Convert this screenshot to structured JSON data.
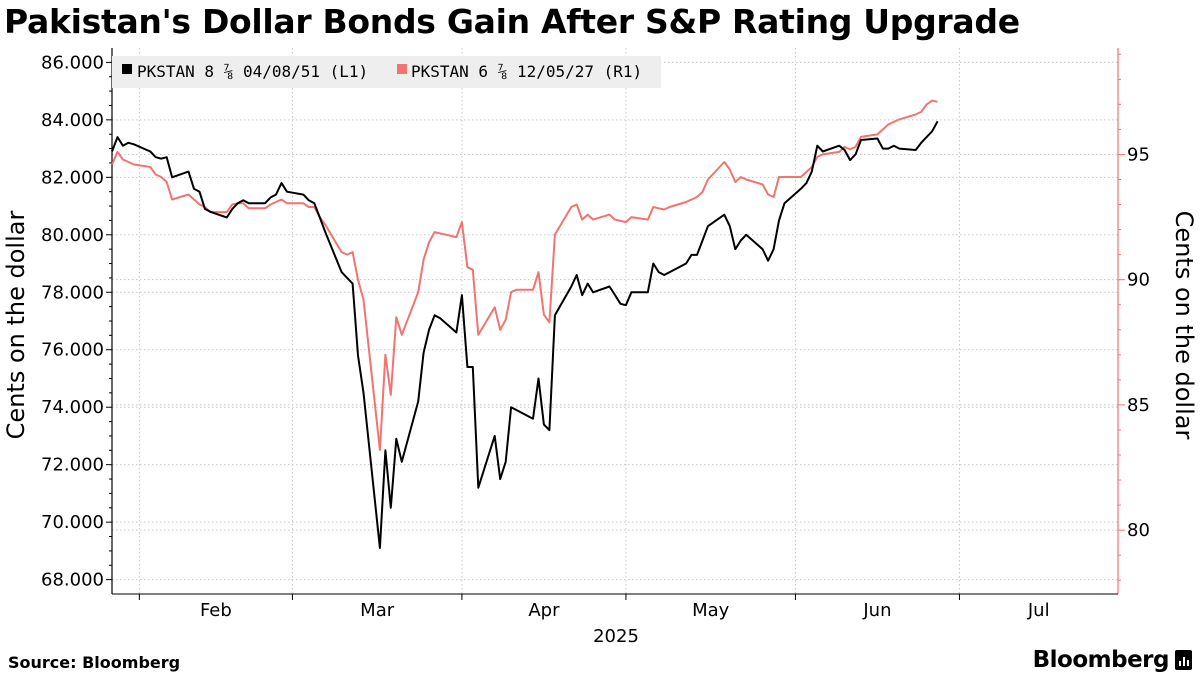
{
  "title": "Pakistan's Dollar Bonds Gain After S&P Rating Upgrade",
  "footer": {
    "source": "Source: Bloomberg",
    "brand": "Bloomberg"
  },
  "colors": {
    "series1": "#000000",
    "series2": "#f07470",
    "right_axis": "#f07470",
    "grid": "#c8c8c8",
    "legend_bg": "#eeeeee"
  },
  "chart_data": {
    "type": "line",
    "xlabel": "2025",
    "ylabel_left": "Cents on the dollar",
    "ylabel_right": "Cents on the dollar",
    "x_ticks": [
      "Feb",
      "Mar",
      "Apr",
      "May",
      "Jun",
      "Jul"
    ],
    "x_start": "2025-01-27",
    "x_end": "2025-07-30",
    "y_left": {
      "min": 67.5,
      "max": 86.5,
      "ticks": [
        "68.000",
        "70.000",
        "72.000",
        "74.000",
        "76.000",
        "78.000",
        "80.000",
        "82.000",
        "84.000",
        "86.000"
      ]
    },
    "y_right": {
      "min": 77.45,
      "max": 99.25,
      "ticks": [
        "80",
        "85",
        "90",
        "95"
      ]
    },
    "series": [
      {
        "name": "PKSTAN 8 ⅞ 04/08/51 (L1)",
        "axis": "left",
        "points": [
          [
            "2025-01-27",
            82.9
          ],
          [
            "2025-01-28",
            83.4
          ],
          [
            "2025-01-29",
            83.1
          ],
          [
            "2025-01-30",
            83.2
          ],
          [
            "2025-01-31",
            83.15
          ],
          [
            "2025-02-03",
            82.9
          ],
          [
            "2025-02-04",
            82.7
          ],
          [
            "2025-02-05",
            82.65
          ],
          [
            "2025-02-06",
            82.7
          ],
          [
            "2025-02-07",
            82.0
          ],
          [
            "2025-02-10",
            82.2
          ],
          [
            "2025-02-11",
            81.6
          ],
          [
            "2025-02-12",
            81.5
          ],
          [
            "2025-02-13",
            80.9
          ],
          [
            "2025-02-14",
            80.8
          ],
          [
            "2025-02-17",
            80.6
          ],
          [
            "2025-02-18",
            80.9
          ],
          [
            "2025-02-19",
            81.1
          ],
          [
            "2025-02-20",
            81.2
          ],
          [
            "2025-02-21",
            81.1
          ],
          [
            "2025-02-24",
            81.1
          ],
          [
            "2025-02-25",
            81.3
          ],
          [
            "2025-02-26",
            81.4
          ],
          [
            "2025-02-27",
            81.8
          ],
          [
            "2025-02-28",
            81.5
          ],
          [
            "2025-03-03",
            81.4
          ],
          [
            "2025-03-04",
            81.2
          ],
          [
            "2025-03-05",
            81.1
          ],
          [
            "2025-03-06",
            80.6
          ],
          [
            "2025-03-07",
            80.1
          ],
          [
            "2025-03-10",
            78.7
          ],
          [
            "2025-03-11",
            78.5
          ],
          [
            "2025-03-12",
            78.3
          ],
          [
            "2025-03-13",
            75.8
          ],
          [
            "2025-03-14",
            74.5
          ],
          [
            "2025-03-17",
            69.1
          ],
          [
            "2025-03-18",
            72.5
          ],
          [
            "2025-03-19",
            70.5
          ],
          [
            "2025-03-20",
            72.9
          ],
          [
            "2025-03-21",
            72.1
          ],
          [
            "2025-03-24",
            74.2
          ],
          [
            "2025-03-25",
            75.9
          ],
          [
            "2025-03-26",
            76.7
          ],
          [
            "2025-03-27",
            77.2
          ],
          [
            "2025-03-28",
            77.1
          ],
          [
            "2025-03-31",
            76.6
          ],
          [
            "2025-04-01",
            77.9
          ],
          [
            "2025-04-02",
            75.4
          ],
          [
            "2025-04-03",
            75.4
          ],
          [
            "2025-04-04",
            71.2
          ],
          [
            "2025-04-07",
            73.0
          ],
          [
            "2025-04-08",
            71.5
          ],
          [
            "2025-04-09",
            72.1
          ],
          [
            "2025-04-10",
            74.0
          ],
          [
            "2025-04-11",
            73.9
          ],
          [
            "2025-04-14",
            73.6
          ],
          [
            "2025-04-15",
            75.0
          ],
          [
            "2025-04-16",
            73.4
          ],
          [
            "2025-04-17",
            73.2
          ],
          [
            "2025-04-18",
            77.2
          ],
          [
            "2025-04-21",
            78.2
          ],
          [
            "2025-04-22",
            78.6
          ],
          [
            "2025-04-23",
            77.9
          ],
          [
            "2025-04-24",
            78.3
          ],
          [
            "2025-04-25",
            78.0
          ],
          [
            "2025-04-28",
            78.2
          ],
          [
            "2025-04-29",
            77.9
          ],
          [
            "2025-04-30",
            77.6
          ],
          [
            "2025-05-01",
            77.55
          ],
          [
            "2025-05-02",
            78.0
          ],
          [
            "2025-05-05",
            78.0
          ],
          [
            "2025-05-06",
            79.0
          ],
          [
            "2025-05-07",
            78.7
          ],
          [
            "2025-05-08",
            78.6
          ],
          [
            "2025-05-09",
            78.7
          ],
          [
            "2025-05-12",
            79.0
          ],
          [
            "2025-05-13",
            79.3
          ],
          [
            "2025-05-14",
            79.3
          ],
          [
            "2025-05-15",
            79.8
          ],
          [
            "2025-05-16",
            80.3
          ],
          [
            "2025-05-19",
            80.7
          ],
          [
            "2025-05-20",
            80.3
          ],
          [
            "2025-05-21",
            79.5
          ],
          [
            "2025-05-22",
            79.8
          ],
          [
            "2025-05-23",
            80.0
          ],
          [
            "2025-05-26",
            79.5
          ],
          [
            "2025-05-27",
            79.1
          ],
          [
            "2025-05-28",
            79.5
          ],
          [
            "2025-05-29",
            80.5
          ],
          [
            "2025-05-30",
            81.1
          ],
          [
            "2025-06-02",
            81.6
          ],
          [
            "2025-06-03",
            81.8
          ],
          [
            "2025-06-04",
            82.2
          ],
          [
            "2025-06-05",
            83.1
          ],
          [
            "2025-06-06",
            82.9
          ],
          [
            "2025-06-09",
            83.1
          ],
          [
            "2025-06-10",
            82.95
          ],
          [
            "2025-06-11",
            82.6
          ],
          [
            "2025-06-12",
            82.8
          ],
          [
            "2025-06-13",
            83.3
          ],
          [
            "2025-06-16",
            83.35
          ],
          [
            "2025-06-17",
            83.0
          ],
          [
            "2025-06-18",
            83.0
          ],
          [
            "2025-06-19",
            83.1
          ],
          [
            "2025-06-20",
            83.0
          ],
          [
            "2025-06-23",
            82.95
          ],
          [
            "2025-06-24",
            83.2
          ],
          [
            "2025-06-25",
            83.4
          ],
          [
            "2025-06-26",
            83.6
          ],
          [
            "2025-06-27",
            83.95
          ]
        ]
      },
      {
        "name": "PKSTAN 6 ⅞ 12/05/27 (R1)",
        "axis": "right",
        "points": [
          [
            "2025-01-27",
            94.6
          ],
          [
            "2025-01-28",
            95.1
          ],
          [
            "2025-01-29",
            94.8
          ],
          [
            "2025-01-30",
            94.7
          ],
          [
            "2025-01-31",
            94.6
          ],
          [
            "2025-02-03",
            94.5
          ],
          [
            "2025-02-04",
            94.2
          ],
          [
            "2025-02-05",
            94.1
          ],
          [
            "2025-02-06",
            93.9
          ],
          [
            "2025-02-07",
            93.2
          ],
          [
            "2025-02-10",
            93.4
          ],
          [
            "2025-02-11",
            93.2
          ],
          [
            "2025-02-12",
            93.0
          ],
          [
            "2025-02-13",
            92.9
          ],
          [
            "2025-02-14",
            92.7
          ],
          [
            "2025-02-17",
            92.7
          ],
          [
            "2025-02-18",
            93.0
          ],
          [
            "2025-02-19",
            93.05
          ],
          [
            "2025-02-20",
            93.05
          ],
          [
            "2025-02-21",
            92.85
          ],
          [
            "2025-02-24",
            92.85
          ],
          [
            "2025-02-25",
            93.0
          ],
          [
            "2025-02-26",
            93.1
          ],
          [
            "2025-02-27",
            93.2
          ],
          [
            "2025-02-28",
            93.05
          ],
          [
            "2025-03-03",
            93.05
          ],
          [
            "2025-03-04",
            92.9
          ],
          [
            "2025-03-05",
            92.9
          ],
          [
            "2025-03-06",
            92.5
          ],
          [
            "2025-03-07",
            92.2
          ],
          [
            "2025-03-10",
            91.1
          ],
          [
            "2025-03-11",
            91.0
          ],
          [
            "2025-03-12",
            91.1
          ],
          [
            "2025-03-13",
            90.0
          ],
          [
            "2025-03-14",
            89.2
          ],
          [
            "2025-03-17",
            83.2
          ],
          [
            "2025-03-18",
            87.0
          ],
          [
            "2025-03-19",
            85.4
          ],
          [
            "2025-03-20",
            88.5
          ],
          [
            "2025-03-21",
            87.8
          ],
          [
            "2025-03-24",
            89.5
          ],
          [
            "2025-03-25",
            90.8
          ],
          [
            "2025-03-26",
            91.5
          ],
          [
            "2025-03-27",
            91.9
          ],
          [
            "2025-03-28",
            91.85
          ],
          [
            "2025-03-31",
            91.7
          ],
          [
            "2025-04-01",
            92.3
          ],
          [
            "2025-04-02",
            90.5
          ],
          [
            "2025-04-03",
            90.4
          ],
          [
            "2025-04-04",
            87.8
          ],
          [
            "2025-04-07",
            88.9
          ],
          [
            "2025-04-08",
            88.0
          ],
          [
            "2025-04-09",
            88.4
          ],
          [
            "2025-04-10",
            89.5
          ],
          [
            "2025-04-11",
            89.6
          ],
          [
            "2025-04-14",
            89.6
          ],
          [
            "2025-04-15",
            90.3
          ],
          [
            "2025-04-16",
            88.6
          ],
          [
            "2025-04-17",
            88.3
          ],
          [
            "2025-04-18",
            91.8
          ],
          [
            "2025-04-21",
            92.9
          ],
          [
            "2025-04-22",
            93.0
          ],
          [
            "2025-04-23",
            92.4
          ],
          [
            "2025-04-24",
            92.6
          ],
          [
            "2025-04-25",
            92.4
          ],
          [
            "2025-04-28",
            92.6
          ],
          [
            "2025-04-29",
            92.4
          ],
          [
            "2025-04-30",
            92.35
          ],
          [
            "2025-05-01",
            92.3
          ],
          [
            "2025-05-02",
            92.5
          ],
          [
            "2025-05-05",
            92.4
          ],
          [
            "2025-05-06",
            92.9
          ],
          [
            "2025-05-07",
            92.85
          ],
          [
            "2025-05-08",
            92.8
          ],
          [
            "2025-05-09",
            92.9
          ],
          [
            "2025-05-12",
            93.1
          ],
          [
            "2025-05-13",
            93.2
          ],
          [
            "2025-05-14",
            93.3
          ],
          [
            "2025-05-15",
            93.5
          ],
          [
            "2025-05-16",
            94.0
          ],
          [
            "2025-05-19",
            94.7
          ],
          [
            "2025-05-20",
            94.4
          ],
          [
            "2025-05-21",
            93.9
          ],
          [
            "2025-05-22",
            94.1
          ],
          [
            "2025-05-23",
            94.0
          ],
          [
            "2025-05-26",
            93.8
          ],
          [
            "2025-05-27",
            93.4
          ],
          [
            "2025-05-28",
            93.3
          ],
          [
            "2025-05-29",
            94.1
          ],
          [
            "2025-05-30",
            94.1
          ],
          [
            "2025-06-02",
            94.1
          ],
          [
            "2025-06-03",
            94.3
          ],
          [
            "2025-06-04",
            94.5
          ],
          [
            "2025-06-05",
            94.9
          ],
          [
            "2025-06-06",
            95.0
          ],
          [
            "2025-06-09",
            95.1
          ],
          [
            "2025-06-10",
            95.3
          ],
          [
            "2025-06-11",
            95.2
          ],
          [
            "2025-06-12",
            95.3
          ],
          [
            "2025-06-13",
            95.7
          ],
          [
            "2025-06-16",
            95.8
          ],
          [
            "2025-06-17",
            96.0
          ],
          [
            "2025-06-18",
            96.2
          ],
          [
            "2025-06-19",
            96.3
          ],
          [
            "2025-06-20",
            96.4
          ],
          [
            "2025-06-23",
            96.6
          ],
          [
            "2025-06-24",
            96.7
          ],
          [
            "2025-06-25",
            97.0
          ],
          [
            "2025-06-26",
            97.15
          ],
          [
            "2025-06-27",
            97.1
          ]
        ]
      }
    ]
  }
}
